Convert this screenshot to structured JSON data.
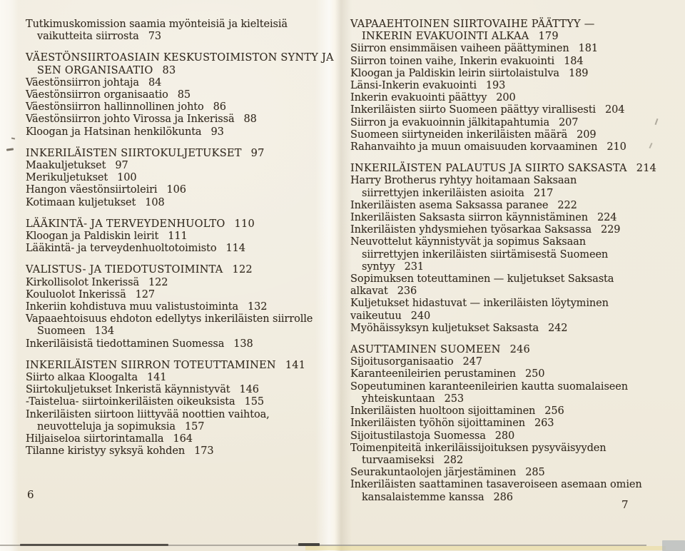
{
  "colors": {
    "paper": "#f0ebdd",
    "ink": "#352c21"
  },
  "left_page": {
    "page_number": "6",
    "blocks": [
      {
        "lines": [
          {
            "text": "Tutkimuskomission saamia myönteisiä ja kielteisiä"
          },
          {
            "text": "vaikutteita siirrosta",
            "page": "73",
            "indent": true
          }
        ]
      },
      {
        "lines": [
          {
            "text": "VÄESTÖNSIIRTOASIAIN KESKUSTOIMISTON SYNTY JA",
            "heading": true
          },
          {
            "text": "SEN ORGANISAATIO",
            "page": "83",
            "heading": true,
            "indent": true
          },
          {
            "text": "Väestönsiirron johtaja",
            "page": "84"
          },
          {
            "text": "Väestönsiirron organisaatio",
            "page": "85"
          },
          {
            "text": "Väestönsiirron hallinnollinen johto",
            "page": "86"
          },
          {
            "text": "Väestönsiirron johto Virossa ja Inkerissä",
            "page": "88"
          },
          {
            "text": "Kloogan ja Hatsinan henkilökunta",
            "page": "93"
          }
        ]
      },
      {
        "lines": [
          {
            "text": "INKERILÄISTEN SIIRTOKULJETUKSET",
            "page": "97",
            "heading": true
          },
          {
            "text": "Maakuljetukset",
            "page": "97"
          },
          {
            "text": "Merikuljetukset",
            "page": "100"
          },
          {
            "text": "Hangon väestönsiirtoleiri",
            "page": "106"
          },
          {
            "text": "Kotimaan kuljetukset",
            "page": "108"
          }
        ]
      },
      {
        "lines": [
          {
            "text": "LÄÄKINTÄ- JA TERVEYDENHUOLTO",
            "page": "110",
            "heading": true
          },
          {
            "text": "Kloogan ja Paldiskin leirit",
            "page": "111"
          },
          {
            "text": "Lääkintä- ja terveydenhuoltotoimisto",
            "page": "114"
          }
        ]
      },
      {
        "lines": [
          {
            "text": "VALISTUS- JA TIEDOTUSTOIMINTA",
            "page": "122",
            "heading": true
          },
          {
            "text": "Kirkollisolot Inkerissä",
            "page": "122"
          },
          {
            "text": "Kouluolot Inkerissä",
            "page": "127"
          },
          {
            "text": "Inkeriin kohdistuva muu valistustoiminta",
            "page": "132"
          },
          {
            "text": "Vapaaehtoisuus ehdoton edellytys inkeriläisten siirrolle"
          },
          {
            "text": "Suomeen",
            "page": "134",
            "indent": true
          },
          {
            "text": "Inkeriläisistä tiedottaminen Suomessa",
            "page": "138"
          }
        ]
      },
      {
        "lines": [
          {
            "text": "INKERILÄISTEN SIIRRON TOTEUTTAMINEN",
            "page": "141",
            "heading": true
          },
          {
            "text": "Siirto alkaa Kloogalta",
            "page": "141"
          },
          {
            "text": "Siirtokuljetukset Inkeristä käynnistyvät",
            "page": "146"
          },
          {
            "text": "-Taistelua- siirtoinkeriläisten oikeuksista",
            "page": "155"
          },
          {
            "text": "Inkeriläisten siirtoon liittyvää noottien vaihtoa,"
          },
          {
            "text": "neuvotteluja ja sopimuksia",
            "page": "157",
            "indent": true
          },
          {
            "text": "Hiljaiseloa siirtorintamalla",
            "page": "164"
          },
          {
            "text": "Tilanne kiristyy syksyä kohden",
            "page": "173"
          }
        ]
      }
    ]
  },
  "right_page": {
    "page_number": "7",
    "blocks": [
      {
        "lines": [
          {
            "text": "VAPAAEHTOINEN SIIRTOVAIHE PÄÄTTYY —",
            "heading": true
          },
          {
            "text": "INKERIN EVAKUOINTI ALKAA",
            "page": "179",
            "heading": true,
            "indent": true
          },
          {
            "text": "Siirron ensimmäisen vaiheen päättyminen",
            "page": "181"
          },
          {
            "text": "Siirron toinen vaihe, Inkerin evakuointi",
            "page": "184"
          },
          {
            "text": "Kloogan ja Paldiskin leirin siirtolaistulva",
            "page": "189"
          },
          {
            "text": "Länsi-Inkerin evakuointi",
            "page": "193"
          },
          {
            "text": "Inkerin evakuointi päättyy",
            "page": "200"
          },
          {
            "text": "Inkeriläisten siirto Suomeen päättyy virallisesti",
            "page": "204"
          },
          {
            "text": "Siirron ja evakuoinnin jälkitapahtumia",
            "page": "207"
          },
          {
            "text": "Suomeen siirtyneiden inkeriläisten määrä",
            "page": "209"
          },
          {
            "text": "Rahanvaihto ja muun omaisuuden korvaaminen",
            "page": "210"
          }
        ]
      },
      {
        "lines": [
          {
            "text": "INKERILÄISTEN PALAUTUS JA SIIRTO SAKSASTA",
            "page": "214",
            "heading": true
          },
          {
            "text": "Harry Brotherus ryhtyy hoitamaan Saksaan"
          },
          {
            "text": "siirrettyjen inkeriläisten asioita",
            "page": "217",
            "indent": true
          },
          {
            "text": "Inkeriläisten asema Saksassa paranee",
            "page": "222"
          },
          {
            "text": "Inkeriläisten Saksasta siirron käynnistäminen",
            "page": "224"
          },
          {
            "text": "Inkeriläisten yhdysmiehen työsarkaa Saksassa",
            "page": "229"
          },
          {
            "text": "Neuvottelut käynnistyvät ja sopimus Saksaan"
          },
          {
            "text": "siirrettyjen inkeriläisten siirtämisestä Suomeen",
            "indent": true
          },
          {
            "text": "syntyy",
            "page": "231",
            "indent": true
          },
          {
            "text": "Sopimuksen toteuttaminen — kuljetukset Saksasta"
          },
          {
            "text": "alkavat",
            "page": "236"
          },
          {
            "text": "Kuljetukset hidastuvat — inkeriläisten löytyminen"
          },
          {
            "text": "vaikeutuu",
            "page": "240"
          },
          {
            "text": "Myöhäissyksyn kuljetukset Saksasta",
            "page": "242"
          }
        ]
      },
      {
        "lines": [
          {
            "text": "ASUTTAMINEN SUOMEEN",
            "page": "246",
            "heading": true
          },
          {
            "text": "Sijoitusorganisaatio",
            "page": "247"
          },
          {
            "text": "Karanteenileirien perustaminen",
            "page": "250"
          },
          {
            "text": "Sopeutuminen karanteenileirien kautta suomalaiseen"
          },
          {
            "text": "yhteiskuntaan",
            "page": "253",
            "indent": true
          },
          {
            "text": "Inkeriläisten huoltoon sijoittaminen",
            "page": "256"
          },
          {
            "text": "Inkeriläisten työhön sijoittaminen",
            "page": "263"
          },
          {
            "text": "Sijoitustilastoja Suomessa",
            "page": "280"
          },
          {
            "text": "Toimenpiteitä inkeriläissijoituksen pysyväisyyden"
          },
          {
            "text": "turvaamiseksi",
            "page": "282",
            "indent": true
          },
          {
            "text": "Seurakuntaolojen järjestäminen",
            "page": "285"
          },
          {
            "text": "Inkeriläisten saattaminen tasaveroiseen asemaan omien"
          },
          {
            "text": "kansalaistemme kanssa",
            "page": "286",
            "indent": true
          }
        ]
      }
    ]
  }
}
